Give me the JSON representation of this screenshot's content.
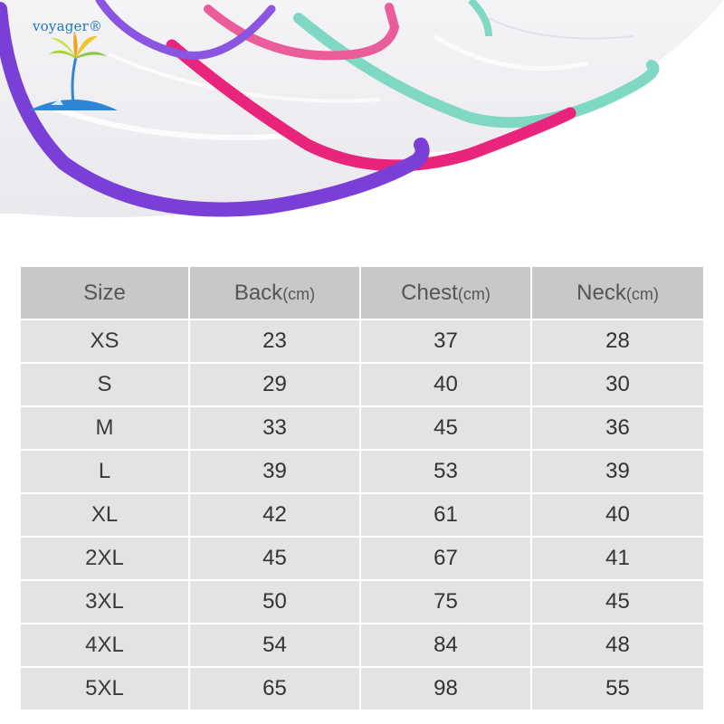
{
  "brand": {
    "name": "voyager®",
    "logo_icon": "palm-tree-island-icon"
  },
  "photo": {
    "subject_icon": "transparent-raincoat-edges-image",
    "trim_colors": {
      "purple": "#7a3fd6",
      "magenta": "#e8257a",
      "pink": "#ea5c9a",
      "mint": "#7fd8c4"
    }
  },
  "table": {
    "header": {
      "size": "Size",
      "back": "Back",
      "chest": "Chest",
      "neck": "Neck",
      "unit": "(cm)"
    },
    "rows": [
      {
        "size": "XS",
        "back": "23",
        "chest": "37",
        "neck": "28"
      },
      {
        "size": "S",
        "back": "29",
        "chest": "40",
        "neck": "30"
      },
      {
        "size": "M",
        "back": "33",
        "chest": "45",
        "neck": "36"
      },
      {
        "size": "L",
        "back": "39",
        "chest": "53",
        "neck": "39"
      },
      {
        "size": "XL",
        "back": "42",
        "chest": "61",
        "neck": "40"
      },
      {
        "size": "2XL",
        "back": "45",
        "chest": "67",
        "neck": "41"
      },
      {
        "size": "3XL",
        "back": "50",
        "chest": "75",
        "neck": "45"
      },
      {
        "size": "4XL",
        "back": "54",
        "chest": "84",
        "neck": "48"
      },
      {
        "size": "5XL",
        "back": "65",
        "chest": "98",
        "neck": "55"
      }
    ],
    "colors": {
      "header_bg": "#c8c8c8",
      "cell_bg": "#e3e3e3",
      "text": "#333333"
    }
  }
}
